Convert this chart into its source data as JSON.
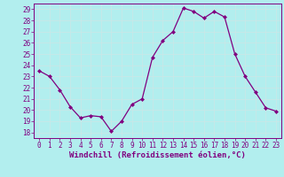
{
  "x": [
    0,
    1,
    2,
    3,
    4,
    5,
    6,
    7,
    8,
    9,
    10,
    11,
    12,
    13,
    14,
    15,
    16,
    17,
    18,
    19,
    20,
    21,
    22,
    23
  ],
  "y": [
    23.5,
    23.0,
    21.8,
    20.3,
    19.3,
    19.5,
    19.4,
    18.1,
    19.0,
    20.5,
    21.0,
    24.7,
    26.2,
    27.0,
    29.1,
    28.8,
    28.2,
    28.8,
    28.3,
    25.0,
    23.0,
    21.6,
    20.2,
    19.9
  ],
  "line_color": "#800080",
  "marker": "D",
  "marker_size": 2,
  "linewidth": 0.9,
  "xlabel": "Windchill (Refroidissement éolien,°C)",
  "xlim": [
    -0.5,
    23.5
  ],
  "ylim": [
    17.5,
    29.5
  ],
  "yticks": [
    18,
    19,
    20,
    21,
    22,
    23,
    24,
    25,
    26,
    27,
    28,
    29
  ],
  "xticks": [
    0,
    1,
    2,
    3,
    4,
    5,
    6,
    7,
    8,
    9,
    10,
    11,
    12,
    13,
    14,
    15,
    16,
    17,
    18,
    19,
    20,
    21,
    22,
    23
  ],
  "bg_color": "#b2eeee",
  "grid_color": "#c8e8e8",
  "spine_color": "#800080",
  "xlabel_color": "#800080",
  "xlabel_fontsize": 6.5,
  "tick_color": "#800080",
  "tick_fontsize": 5.5
}
